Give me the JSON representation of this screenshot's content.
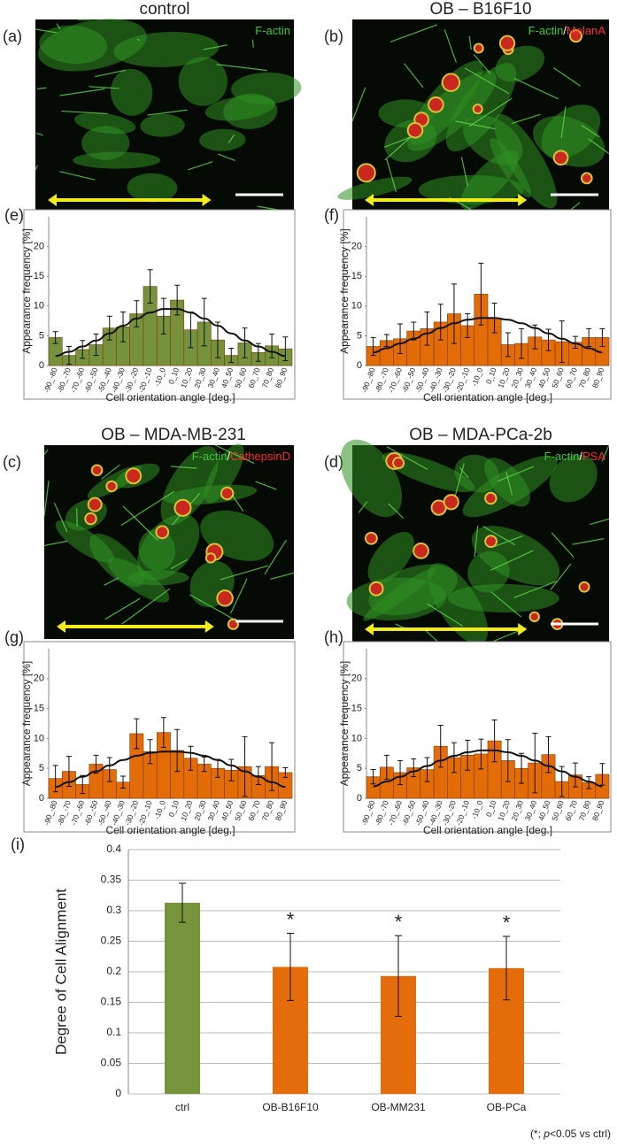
{
  "images": [
    {
      "label": "(a)",
      "title": "control",
      "stains": [
        {
          "text": "F-actin",
          "color": "#3cc43c"
        }
      ]
    },
    {
      "label": "(b)",
      "title": "OB – B16F10",
      "stains": [
        {
          "text": "F-actin",
          "color": "#3cc43c"
        },
        {
          "text": "/",
          "color": "#ffffff"
        },
        {
          "text": "MelanA",
          "color": "#ff2a2a"
        }
      ]
    },
    {
      "label": "(c)",
      "title": "OB – MDA-MB-231",
      "stains": [
        {
          "text": "F-actin",
          "color": "#3cc43c"
        },
        {
          "text": "/",
          "color": "#ffffff"
        },
        {
          "text": "CathepsinD",
          "color": "#ff2a2a"
        }
      ]
    },
    {
      "label": "(d)",
      "title": "OB – MDA-PCa-2b",
      "stains": [
        {
          "text": "F-actin",
          "color": "#3cc43c"
        },
        {
          "text": "/",
          "color": "#ffffff"
        },
        {
          "text": "PSA",
          "color": "#ff2a2a"
        }
      ]
    }
  ],
  "chart_data": [
    {
      "type": "bar",
      "label": "(e)",
      "ylabel": "Appearance frequency [%]",
      "xlabel": "Cell orientation angle [deg.]",
      "color": "#76923c",
      "categories": [
        "-90_-80",
        "-80_-70",
        "-70_-60",
        "-60_-50",
        "-50_-40",
        "-40_-30",
        "-30_-20",
        "-20_-10",
        "-10_0",
        "0_10",
        "10_20",
        "20_30",
        "30_40",
        "40_50",
        "50_60",
        "60_70",
        "70_80",
        "80_90"
      ],
      "values": [
        4.7,
        1.7,
        2.7,
        3.5,
        6.3,
        6.5,
        8.7,
        13.3,
        8.3,
        11.0,
        6.0,
        7.3,
        4.3,
        1.7,
        3.8,
        2.2,
        3.3,
        2.8
      ],
      "errors": [
        1.0,
        1.5,
        1.5,
        1.8,
        2.0,
        2.5,
        2.2,
        2.8,
        3.0,
        2.5,
        3.0,
        4.0,
        3.0,
        1.2,
        2.5,
        1.5,
        2.0,
        2.0
      ],
      "fit": [
        1.6,
        2.3,
        3.2,
        4.2,
        5.4,
        6.7,
        7.9,
        8.9,
        9.5,
        9.5,
        8.9,
        7.9,
        6.7,
        5.4,
        4.2,
        3.2,
        2.3,
        1.6
      ],
      "ylim": [
        0,
        25
      ],
      "yticks": [
        0,
        5,
        10,
        15,
        20
      ]
    },
    {
      "type": "bar",
      "label": "(f)",
      "ylabel": "Appearance frequency [%]",
      "xlabel": "Cell orientation angle [deg.]",
      "color": "#e36c09",
      "categories": [
        "-90_-80",
        "-80_-70",
        "-70_-60",
        "-60_-50",
        "-50_-40",
        "-40_-30",
        "-30_-20",
        "-20_-10",
        "-10_0",
        "0_10",
        "10_20",
        "20_30",
        "30_40",
        "40_50",
        "50_60",
        "60_70",
        "70_80",
        "80_90"
      ],
      "values": [
        3.2,
        4.2,
        4.5,
        5.8,
        6.2,
        7.3,
        8.7,
        6.7,
        12.0,
        8.0,
        3.5,
        3.7,
        4.8,
        4.3,
        4.0,
        3.9,
        4.7,
        4.7
      ],
      "errors": [
        1.5,
        1.0,
        2.5,
        1.5,
        2.8,
        3.0,
        5.0,
        2.0,
        5.2,
        2.5,
        2.0,
        2.5,
        2.0,
        1.8,
        3.5,
        1.0,
        1.5,
        1.5
      ],
      "fit": [
        2.2,
        2.9,
        3.7,
        4.5,
        5.4,
        6.3,
        7.1,
        7.7,
        8.0,
        8.0,
        7.7,
        7.1,
        6.3,
        5.4,
        4.5,
        3.7,
        2.9,
        2.2
      ],
      "ylim": [
        0,
        25
      ],
      "yticks": [
        0,
        5,
        10,
        15,
        20
      ]
    },
    {
      "type": "bar",
      "label": "(g)",
      "ylabel": "Appearance frequency [%]",
      "xlabel": "Cell orientation angle [deg.]",
      "color": "#e36c09",
      "categories": [
        "-90_-80",
        "-80_-70",
        "-70_-60",
        "-60_-50",
        "-50_-40",
        "-40_-30",
        "-30_-20",
        "-20_-10",
        "-10_0",
        "0_10",
        "10_20",
        "20_30",
        "30_40",
        "40_50",
        "50_60",
        "60_70",
        "70_80",
        "80_90"
      ],
      "values": [
        3.3,
        4.5,
        2.3,
        5.7,
        4.8,
        2.7,
        10.8,
        7.8,
        11.0,
        8.0,
        6.7,
        5.7,
        5.0,
        4.7,
        5.3,
        3.8,
        5.3,
        4.3
      ],
      "errors": [
        2.2,
        2.5,
        1.5,
        1.5,
        2.0,
        1.0,
        2.5,
        2.0,
        2.5,
        3.5,
        2.0,
        1.2,
        1.5,
        1.8,
        5.0,
        1.5,
        4.0,
        0.8
      ],
      "fit": [
        1.9,
        2.7,
        3.6,
        4.5,
        5.5,
        6.4,
        7.1,
        7.6,
        7.8,
        7.8,
        7.6,
        7.1,
        6.4,
        5.5,
        4.5,
        3.6,
        2.7,
        1.9
      ],
      "ylim": [
        0,
        25
      ],
      "yticks": [
        0,
        5,
        10,
        15,
        20
      ]
    },
    {
      "type": "bar",
      "label": "(h)",
      "ylabel": "Appearance frequency [%]",
      "xlabel": "Cell orientation angle [deg.]",
      "color": "#e36c09",
      "categories": [
        "-90_-80",
        "-80_-70",
        "-70_-60",
        "-60_-50",
        "-50_-40",
        "-40_-30",
        "-30_-20",
        "-20_-10",
        "-10_0",
        "0_10",
        "10_20",
        "20_30",
        "30_40",
        "40_50",
        "50_60",
        "60_70",
        "70_80",
        "80_90"
      ],
      "values": [
        3.6,
        5.2,
        4.3,
        5.1,
        4.8,
        8.7,
        6.8,
        7.2,
        7.4,
        9.6,
        6.3,
        5.0,
        5.9,
        7.3,
        2.8,
        3.9,
        2.6,
        4.0
      ],
      "errors": [
        1.2,
        2.0,
        2.0,
        1.5,
        2.0,
        3.5,
        2.5,
        2.5,
        2.5,
        3.5,
        3.5,
        2.5,
        5.0,
        3.0,
        2.5,
        2.0,
        1.0,
        1.8
      ],
      "fit": [
        2.0,
        2.8,
        3.6,
        4.5,
        5.4,
        6.3,
        7.1,
        7.7,
        8.0,
        8.0,
        7.7,
        7.1,
        6.3,
        5.4,
        4.5,
        3.6,
        2.8,
        2.0
      ],
      "ylim": [
        0,
        25
      ],
      "yticks": [
        0,
        5,
        10,
        15,
        20
      ]
    },
    {
      "type": "column",
      "label": "(i)",
      "ylabel": "Degree of Cell Alignment",
      "categories": [
        "ctrl",
        "OB-B16F10",
        "OB-MM231",
        "OB-PCa"
      ],
      "values": [
        0.313,
        0.208,
        0.193,
        0.206
      ],
      "errors": [
        0.032,
        0.055,
        0.066,
        0.052
      ],
      "colors": [
        "#77933c",
        "#e46c0a",
        "#e46c0a",
        "#e46c0a"
      ],
      "significance": [
        null,
        "*",
        "*",
        "*"
      ],
      "ylim": [
        0,
        0.4
      ],
      "yticks": [
        0,
        0.05,
        0.1,
        0.15,
        0.2,
        0.25,
        0.3,
        0.35,
        0.4
      ],
      "grid": true,
      "footnote": [
        "(*; ",
        "p",
        "<0.05 vs ctrl)"
      ]
    }
  ]
}
